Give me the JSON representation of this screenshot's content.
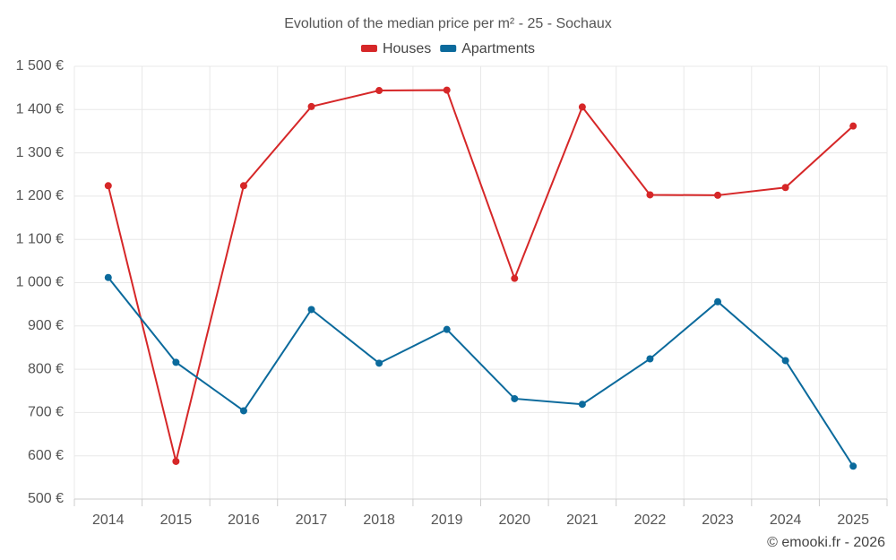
{
  "chart_data": {
    "type": "line",
    "title": "Evolution of the median price per m² - 25 - Sochaux",
    "categories": [
      "2014",
      "2015",
      "2016",
      "2017",
      "2018",
      "2019",
      "2020",
      "2021",
      "2022",
      "2023",
      "2024",
      "2025"
    ],
    "series": [
      {
        "name": "Houses",
        "color": "#d62728",
        "values": [
          1224,
          587,
          1224,
          1407,
          1444,
          1445,
          1010,
          1406,
          1203,
          1202,
          1220,
          1362
        ]
      },
      {
        "name": "Apartments",
        "color": "#0b6a9c",
        "values": [
          1012,
          816,
          704,
          938,
          814,
          892,
          732,
          719,
          824,
          956,
          820,
          576
        ]
      }
    ],
    "y_ticks": [
      "500 €",
      "600 €",
      "700 €",
      "800 €",
      "900 €",
      "1 000 €",
      "1 100 €",
      "1 200 €",
      "1 300 €",
      "1 400 €",
      "1 500 €"
    ],
    "y_tick_values": [
      500,
      600,
      700,
      800,
      900,
      1000,
      1100,
      1200,
      1300,
      1400,
      1500
    ],
    "ylim": [
      500,
      1500
    ],
    "xlabel": "",
    "ylabel": "",
    "grid": true,
    "legend_position": "top-center"
  },
  "credit": "© emooki.fr - 2026"
}
